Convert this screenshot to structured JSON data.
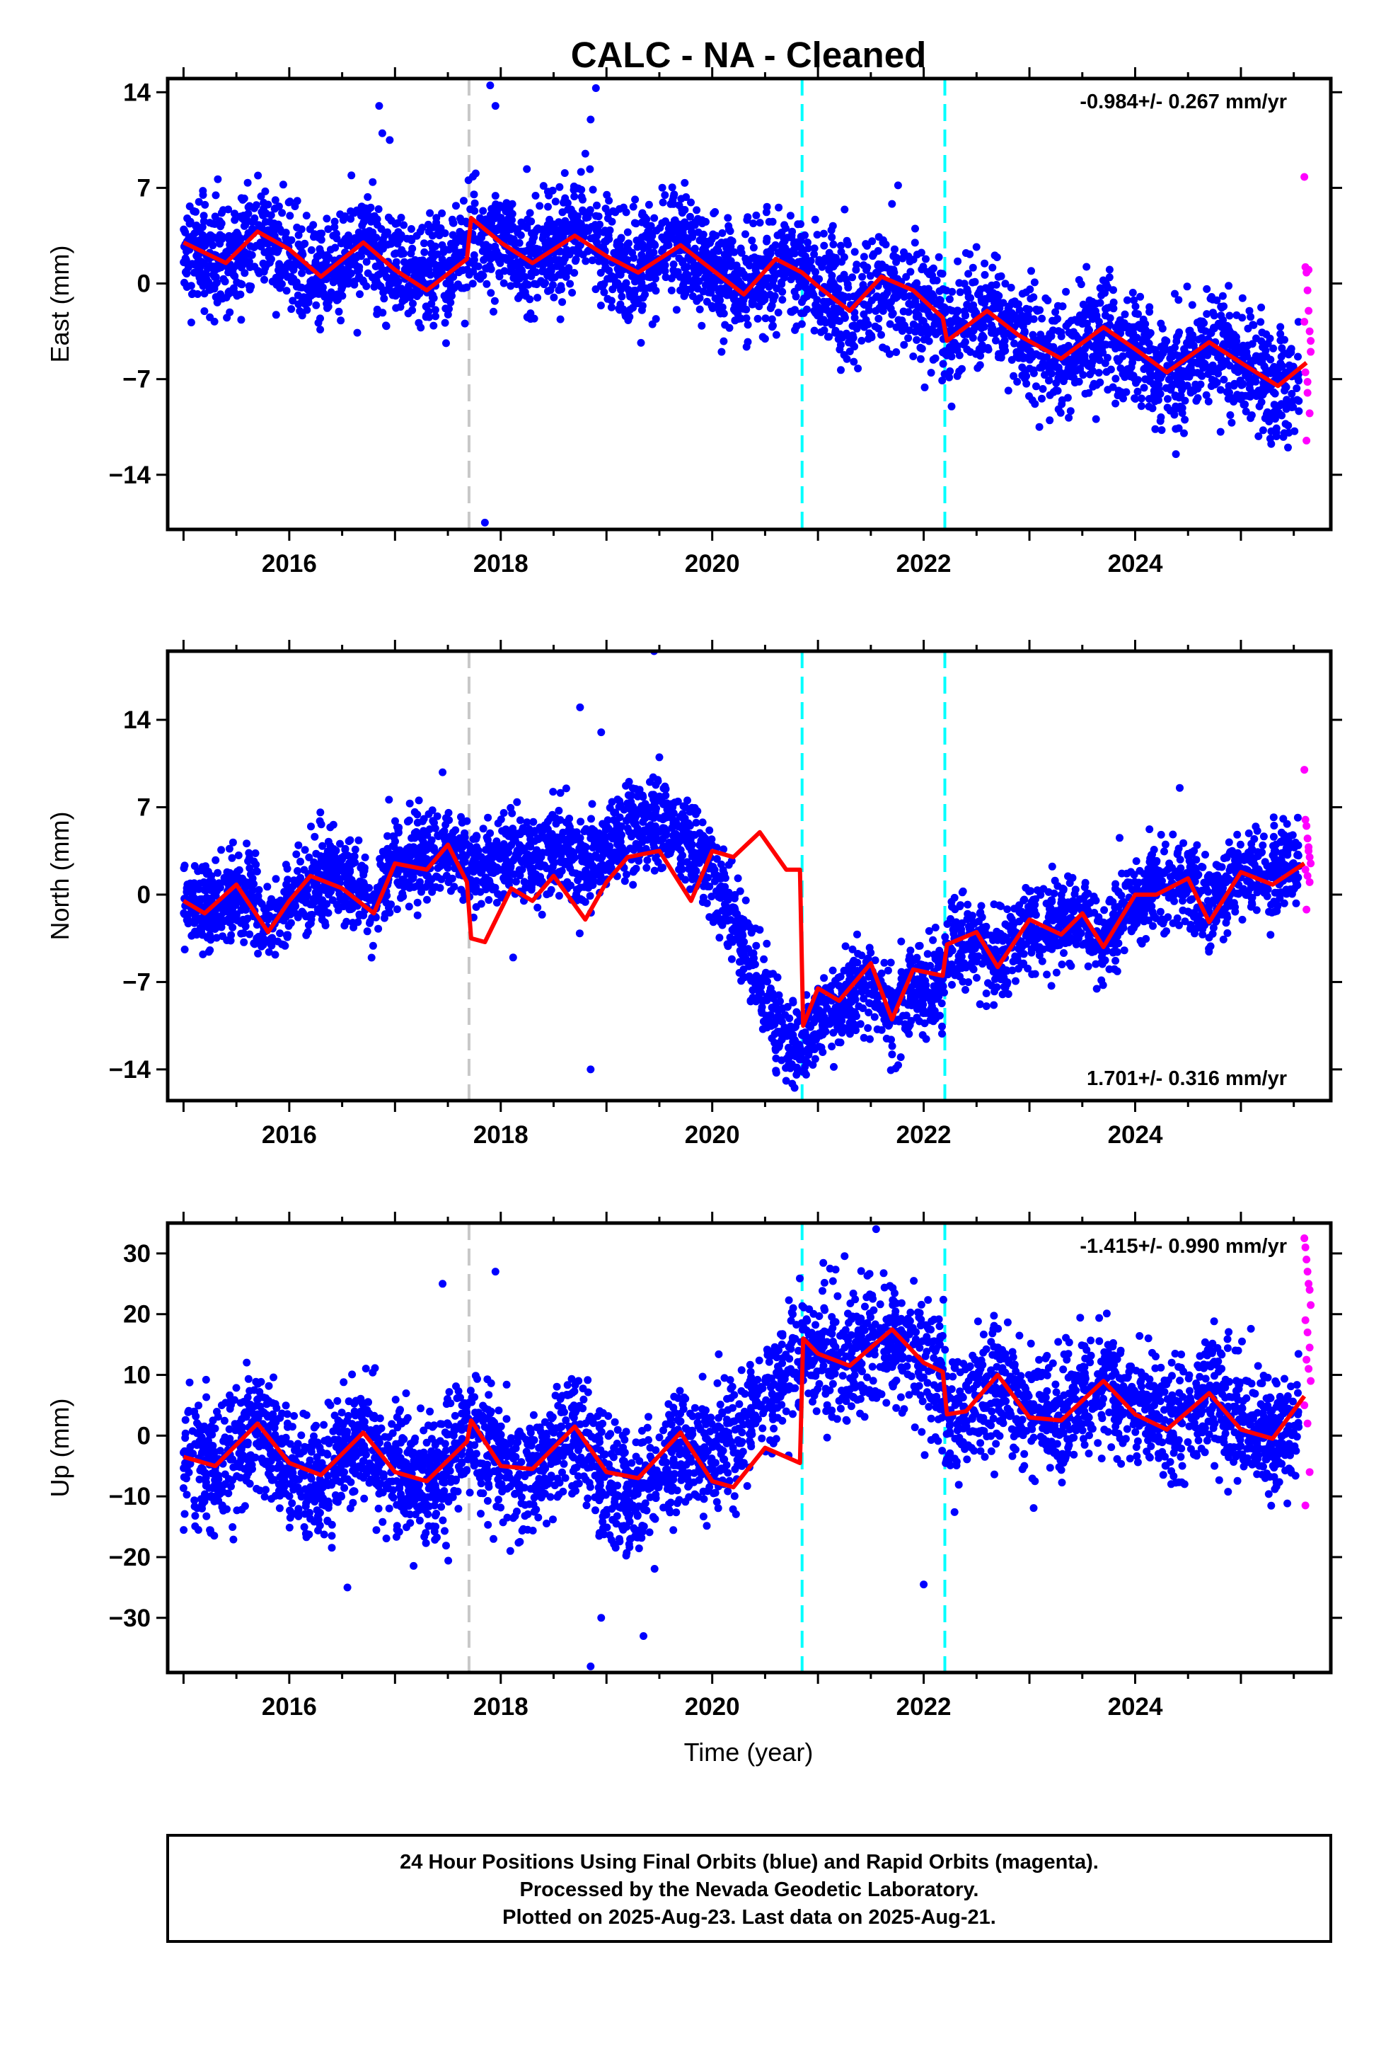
{
  "title": "CALC  - NA - Cleaned",
  "xlabel": "Time (year)",
  "footer": {
    "line1": "24 Hour Positions Using Final Orbits (blue) and Rapid Orbits (magenta).",
    "line2": "Processed by the Nevada Geodetic Laboratory.",
    "line3": "Plotted on 2025-Aug-23. Last data on 2025-Aug-21."
  },
  "colors": {
    "final_orbits": "#0000ff",
    "rapid_orbits": "#ff00ff",
    "model_fit": "#ff0000",
    "equipment_change": "#c8c8c8",
    "earthquake": "#00ffff"
  },
  "chart_data": [
    {
      "type": "scatter",
      "component": "east",
      "ylabel": "East (mm)",
      "xlim": [
        2014.85,
        2025.85
      ],
      "ylim": [
        -18,
        15
      ],
      "yticks": [
        -14,
        -7,
        0,
        7,
        14
      ],
      "xticks": [
        2016,
        2018,
        2020,
        2022,
        2024
      ],
      "rate_label": "-0.984+/- 0.267 mm/yr",
      "rate_position": "top-right",
      "vertical_lines": [
        {
          "x": 2017.7,
          "color": "gray"
        },
        {
          "x": 2020.85,
          "color": "cyan"
        },
        {
          "x": 2022.2,
          "color": "cyan"
        }
      ],
      "model": {
        "x": [
          2015.0,
          2015.4,
          2015.7,
          2016.0,
          2016.3,
          2016.7,
          2017.0,
          2017.3,
          2017.68,
          2017.72,
          2018.0,
          2018.3,
          2018.7,
          2019.0,
          2019.3,
          2019.7,
          2020.0,
          2020.3,
          2020.6,
          2020.85,
          2021.0,
          2021.3,
          2021.6,
          2021.9,
          2022.18,
          2022.22,
          2022.6,
          2022.9,
          2023.3,
          2023.7,
          2024.0,
          2024.3,
          2024.7,
          2025.0,
          2025.35,
          2025.62
        ],
        "values": [
          3.0,
          1.5,
          3.8,
          2.5,
          0.5,
          3.0,
          1.0,
          -0.5,
          1.8,
          4.8,
          3.0,
          1.5,
          3.5,
          2.0,
          0.8,
          2.8,
          1.0,
          -0.8,
          1.8,
          0.8,
          -0.2,
          -2.0,
          0.5,
          -0.5,
          -2.5,
          -4.2,
          -2.0,
          -3.8,
          -5.5,
          -3.2,
          -4.8,
          -6.5,
          -4.3,
          -5.8,
          -7.5,
          -5.8
        ]
      },
      "final_mean": {
        "x": [
          2015.0,
          2015.4,
          2015.7,
          2016.0,
          2016.3,
          2016.7,
          2017.0,
          2017.3,
          2017.68,
          2017.72,
          2018.0,
          2018.3,
          2018.7,
          2019.0,
          2019.3,
          2019.7,
          2020.0,
          2020.3,
          2020.6,
          2020.85,
          2021.0,
          2021.3,
          2021.6,
          2021.9,
          2022.18,
          2022.22,
          2022.6,
          2022.9,
          2023.3,
          2023.7,
          2024.0,
          2024.3,
          2024.7,
          2025.0,
          2025.35,
          2025.55
        ],
        "values": [
          2.5,
          1.5,
          3.5,
          2.0,
          0.5,
          3.0,
          1.5,
          0.5,
          2.0,
          4.0,
          3.0,
          1.5,
          3.5,
          2.0,
          0.8,
          3.0,
          1.0,
          -0.5,
          1.8,
          0.5,
          -0.2,
          -2.0,
          0.3,
          -1.0,
          -2.5,
          -3.8,
          -2.0,
          -3.8,
          -5.5,
          -3.5,
          -5.0,
          -6.8,
          -4.5,
          -6.0,
          -7.8,
          -7.0
        ]
      },
      "final_scatter_mm": 2.0,
      "final_count": 3700,
      "final_outliers": [
        {
          "x": 2016.85,
          "y": 13.0
        },
        {
          "x": 2016.88,
          "y": 11.0
        },
        {
          "x": 2017.9,
          "y": 14.5
        },
        {
          "x": 2017.95,
          "y": 13.0
        },
        {
          "x": 2018.9,
          "y": 14.3
        },
        {
          "x": 2018.85,
          "y": 12.0
        },
        {
          "x": 2017.85,
          "y": -17.5
        },
        {
          "x": 2016.95,
          "y": 10.5
        },
        {
          "x": 2018.8,
          "y": 9.5
        }
      ],
      "rapid": {
        "x": [
          2025.6,
          2025.61,
          2025.62,
          2025.63,
          2025.64,
          2025.65,
          2025.66,
          2025.61,
          2025.63,
          2025.65,
          2025.62,
          2025.64,
          2025.66,
          2025.6,
          2025.63
        ],
        "values": [
          7.8,
          1.2,
          0.8,
          -0.5,
          -2.0,
          -3.5,
          -5.0,
          -6.5,
          -8.0,
          -9.5,
          -11.5,
          1.0,
          -4.2,
          -2.8,
          -7.2
        ]
      }
    },
    {
      "type": "scatter",
      "component": "north",
      "ylabel": "North (mm)",
      "xlim": [
        2014.85,
        2025.85
      ],
      "ylim": [
        -16.5,
        19.5
      ],
      "yticks": [
        -14,
        -7,
        0,
        7,
        14
      ],
      "xticks": [
        2016,
        2018,
        2020,
        2022,
        2024
      ],
      "rate_label": "1.701+/- 0.316 mm/yr",
      "rate_position": "bottom-right",
      "vertical_lines": [
        {
          "x": 2017.7,
          "color": "gray"
        },
        {
          "x": 2020.85,
          "color": "cyan"
        },
        {
          "x": 2022.2,
          "color": "cyan"
        }
      ],
      "model": {
        "x": [
          2015.0,
          2015.2,
          2015.5,
          2015.8,
          2016.0,
          2016.2,
          2016.5,
          2016.8,
          2017.0,
          2017.3,
          2017.5,
          2017.68,
          2017.72,
          2017.85,
          2018.1,
          2018.3,
          2018.5,
          2018.8,
          2019.0,
          2019.2,
          2019.5,
          2019.8,
          2020.0,
          2020.2,
          2020.45,
          2020.7,
          2020.83,
          2020.86,
          2021.0,
          2021.2,
          2021.5,
          2021.7,
          2021.9,
          2022.18,
          2022.22,
          2022.5,
          2022.7,
          2023.0,
          2023.3,
          2023.5,
          2023.7,
          2024.0,
          2024.2,
          2024.5,
          2024.7,
          2025.0,
          2025.3,
          2025.6
        ],
        "values": [
          -0.5,
          -1.5,
          0.8,
          -3.0,
          -0.5,
          1.5,
          0.5,
          -1.5,
          2.5,
          2.0,
          4.0,
          1.0,
          -3.5,
          -3.8,
          0.5,
          -0.5,
          1.5,
          -2.0,
          1.0,
          3.0,
          3.5,
          -0.5,
          3.5,
          3.0,
          5.0,
          2.0,
          2.0,
          -10.5,
          -7.5,
          -8.5,
          -5.5,
          -10.0,
          -6.0,
          -6.5,
          -4.0,
          -3.0,
          -5.8,
          -2.0,
          -3.2,
          -1.5,
          -4.2,
          0.0,
          0.0,
          1.3,
          -2.2,
          1.8,
          0.8,
          2.5
        ]
      },
      "final_mean": {
        "x": [
          2015.0,
          2015.3,
          2015.6,
          2015.8,
          2016.1,
          2016.5,
          2016.8,
          2017.0,
          2017.5,
          2017.68,
          2017.72,
          2018.0,
          2018.5,
          2018.8,
          2019.0,
          2019.5,
          2019.8,
          2020.0,
          2020.2,
          2020.4,
          2020.6,
          2020.83,
          2020.86,
          2021.0,
          2021.3,
          2021.5,
          2021.7,
          2021.9,
          2022.18,
          2022.22,
          2022.5,
          2022.7,
          2023.0,
          2023.3,
          2023.5,
          2023.7,
          2024.0,
          2024.5,
          2024.7,
          2025.0,
          2025.3,
          2025.55
        ],
        "values": [
          -0.5,
          -1.5,
          0.5,
          -3.0,
          0.0,
          2.0,
          -1.0,
          2.5,
          4.0,
          2.5,
          1.5,
          3.0,
          3.5,
          2.5,
          4.0,
          6.0,
          4.0,
          2.0,
          -2.0,
          -6.0,
          -10.5,
          -12.5,
          -12.5,
          -10.0,
          -8.5,
          -7.0,
          -9.5,
          -7.5,
          -6.5,
          -4.5,
          -3.5,
          -5.5,
          -2.0,
          -3.0,
          -1.5,
          -4.0,
          0.0,
          1.5,
          -1.5,
          2.0,
          1.5,
          3.0
        ]
      },
      "final_scatter_mm": 1.7,
      "final_count": 3700,
      "final_outliers": [
        {
          "x": 2019.45,
          "y": 19.5
        },
        {
          "x": 2018.75,
          "y": 15.0
        },
        {
          "x": 2018.95,
          "y": 13.0
        },
        {
          "x": 2018.85,
          "y": -14.0
        },
        {
          "x": 2017.45,
          "y": 9.8
        },
        {
          "x": 2019.5,
          "y": 11.0
        }
      ],
      "rapid": {
        "x": [
          2025.6,
          2025.61,
          2025.62,
          2025.63,
          2025.64,
          2025.65,
          2025.66,
          2025.61,
          2025.63,
          2025.65,
          2025.62,
          2025.64
        ],
        "values": [
          10.0,
          6.0,
          5.5,
          4.5,
          3.5,
          3.0,
          2.5,
          2.0,
          1.5,
          1.0,
          -1.2,
          3.8
        ]
      }
    },
    {
      "type": "scatter",
      "component": "up",
      "ylabel": "Up (mm)",
      "xlim": [
        2014.85,
        2025.85
      ],
      "ylim": [
        -39,
        35
      ],
      "yticks": [
        -30,
        -20,
        -10,
        0,
        10,
        20,
        30
      ],
      "xticks": [
        2016,
        2018,
        2020,
        2022,
        2024
      ],
      "rate_label": "-1.415+/- 0.990 mm/yr",
      "rate_position": "top-right",
      "vertical_lines": [
        {
          "x": 2017.7,
          "color": "gray"
        },
        {
          "x": 2020.85,
          "color": "cyan"
        },
        {
          "x": 2022.2,
          "color": "cyan"
        }
      ],
      "model": {
        "x": [
          2015.0,
          2015.3,
          2015.7,
          2016.0,
          2016.3,
          2016.7,
          2017.0,
          2017.3,
          2017.68,
          2017.72,
          2018.0,
          2018.3,
          2018.7,
          2019.0,
          2019.3,
          2019.7,
          2020.0,
          2020.2,
          2020.5,
          2020.83,
          2020.86,
          2021.0,
          2021.3,
          2021.7,
          2022.0,
          2022.18,
          2022.22,
          2022.4,
          2022.7,
          2023.0,
          2023.3,
          2023.7,
          2024.0,
          2024.3,
          2024.7,
          2025.0,
          2025.3,
          2025.6
        ],
        "values": [
          -3.5,
          -5.0,
          2.0,
          -4.5,
          -6.5,
          0.5,
          -6.0,
          -7.5,
          -1.0,
          2.5,
          -5.0,
          -5.5,
          1.5,
          -6.0,
          -7.0,
          0.5,
          -7.5,
          -8.5,
          -2.0,
          -4.5,
          16.0,
          13.5,
          11.5,
          17.5,
          12.0,
          10.5,
          3.5,
          4.0,
          10.0,
          3.0,
          2.5,
          9.0,
          3.5,
          1.0,
          7.0,
          1.0,
          -0.5,
          6.5
        ]
      },
      "final_mean": {
        "x": [
          2015.0,
          2015.3,
          2015.7,
          2016.0,
          2016.3,
          2016.7,
          2017.0,
          2017.3,
          2017.7,
          2018.0,
          2018.3,
          2018.7,
          2019.0,
          2019.3,
          2019.7,
          2020.0,
          2020.3,
          2020.6,
          2020.83,
          2020.86,
          2021.0,
          2021.3,
          2021.7,
          2022.0,
          2022.18,
          2022.22,
          2022.4,
          2022.7,
          2023.0,
          2023.3,
          2023.7,
          2024.0,
          2024.3,
          2024.7,
          2025.0,
          2025.3,
          2025.55
        ],
        "values": [
          -3.0,
          -5.0,
          2.0,
          -5.0,
          -7.0,
          0.0,
          -6.0,
          -8.0,
          0.5,
          -5.0,
          -6.0,
          1.0,
          -8.0,
          -10.0,
          -2.0,
          -4.0,
          3.0,
          8.0,
          12.0,
          16.0,
          13.0,
          11.5,
          17.0,
          12.0,
          9.0,
          4.0,
          4.0,
          9.0,
          3.5,
          3.0,
          8.5,
          4.0,
          2.0,
          7.0,
          2.0,
          -1.0,
          3.0
        ]
      },
      "final_scatter_mm": 5.0,
      "final_count": 3700,
      "final_outliers": [
        {
          "x": 2018.85,
          "y": -38.0
        },
        {
          "x": 2019.35,
          "y": -33.0
        },
        {
          "x": 2018.95,
          "y": -30.0
        },
        {
          "x": 2021.55,
          "y": 34.0
        },
        {
          "x": 2017.95,
          "y": 27.0
        },
        {
          "x": 2017.45,
          "y": 25.0
        },
        {
          "x": 2022.0,
          "y": -24.5
        },
        {
          "x": 2016.55,
          "y": -25.0
        }
      ],
      "rapid": {
        "x": [
          2025.6,
          2025.61,
          2025.62,
          2025.63,
          2025.64,
          2025.65,
          2025.66,
          2025.61,
          2025.63,
          2025.65,
          2025.62,
          2025.64,
          2025.66,
          2025.6,
          2025.63,
          2025.65,
          2025.61
        ],
        "values": [
          32.5,
          31.0,
          29.0,
          27.0,
          25.0,
          24.0,
          21.5,
          19.0,
          17.0,
          14.5,
          12.5,
          11.0,
          9.0,
          5.0,
          2.0,
          -6.0,
          -11.5
        ]
      }
    }
  ]
}
